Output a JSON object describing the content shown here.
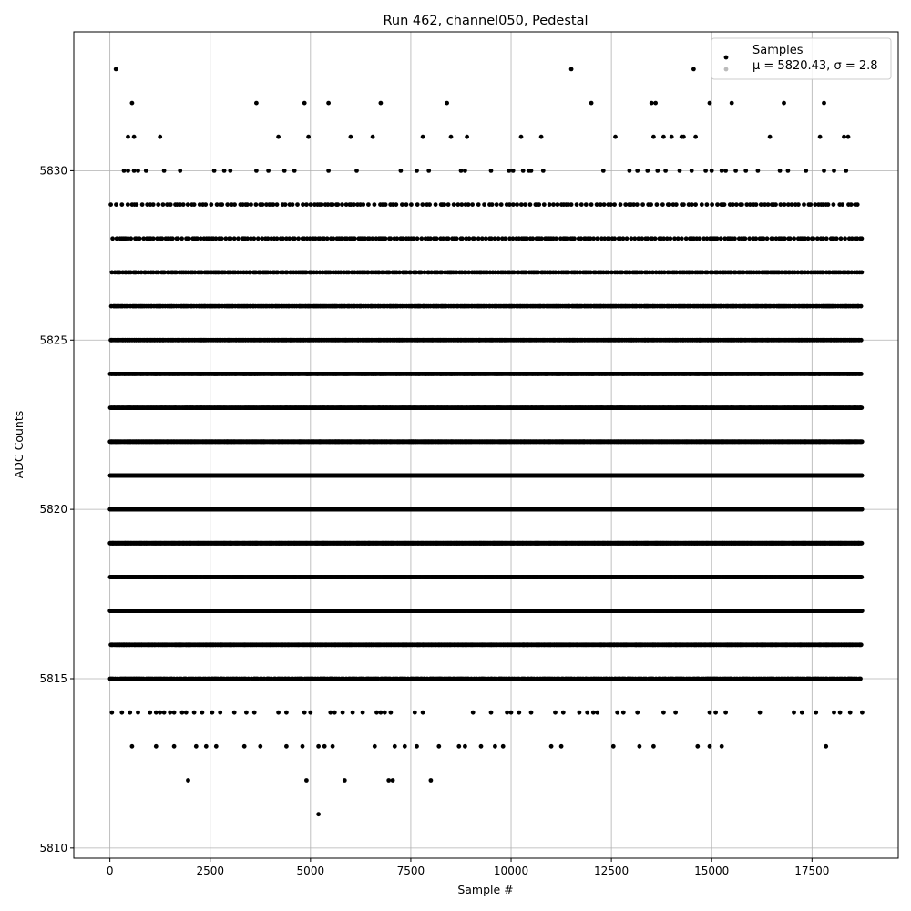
{
  "chart_data": {
    "type": "scatter",
    "title": "Run 462, channel050, Pedestal",
    "xlabel": "Sample #",
    "ylabel": "ADC Counts",
    "xlim": [
      -900,
      19650
    ],
    "ylim": [
      5809.7,
      5834.1
    ],
    "x_ticks": [
      0,
      2500,
      5000,
      7500,
      10000,
      12500,
      15000,
      17500
    ],
    "y_ticks": [
      5810,
      5815,
      5820,
      5825,
      5830
    ],
    "grid": true,
    "legend": {
      "placement": "top-right",
      "title": "Samples",
      "entry_label": "μ = 5820.43, σ = 2.8"
    },
    "n_samples": 18750,
    "series": [
      {
        "name": "Samples",
        "color": "#000000",
        "levels": [
          {
            "y": 5829,
            "x_ranges": [
              [
                0,
                18650
              ]
            ],
            "step": 95
          },
          {
            "y": 5828,
            "x_ranges": [
              [
                0,
                18750
              ]
            ],
            "step": 68
          },
          {
            "y": 5827,
            "x_ranges": [
              [
                0,
                18750
              ]
            ],
            "step": 52
          },
          {
            "y": 5826,
            "x_ranges": [
              [
                0,
                18750
              ]
            ],
            "step": 38
          },
          {
            "y": 5825,
            "x_ranges": [
              [
                0,
                18750
              ]
            ],
            "step": 28
          },
          {
            "y": 5824,
            "x_ranges": [
              [
                0,
                18750
              ]
            ],
            "step": 20
          },
          {
            "y": 5823,
            "x_ranges": [
              [
                0,
                18750
              ]
            ],
            "step": 14
          },
          {
            "y": 5822,
            "x_ranges": [
              [
                0,
                18750
              ]
            ],
            "step": 10
          },
          {
            "y": 5821,
            "x_ranges": [
              [
                0,
                18750
              ]
            ],
            "step": 8
          },
          {
            "y": 5820,
            "x_ranges": [
              [
                0,
                18750
              ]
            ],
            "step": 8
          },
          {
            "y": 5819,
            "x_ranges": [
              [
                0,
                18750
              ]
            ],
            "step": 8
          },
          {
            "y": 5818,
            "x_ranges": [
              [
                0,
                18750
              ]
            ],
            "step": 10
          },
          {
            "y": 5817,
            "x_ranges": [
              [
                0,
                18750
              ]
            ],
            "step": 13
          },
          {
            "y": 5816,
            "x_ranges": [
              [
                0,
                18750
              ]
            ],
            "step": 22
          },
          {
            "y": 5815,
            "x_ranges": [
              [
                0,
                18750
              ]
            ],
            "step": 45
          }
        ],
        "points": [
          [
            150,
            5833
          ],
          [
            11500,
            5833
          ],
          [
            14550,
            5833
          ],
          [
            550,
            5832
          ],
          [
            3650,
            5832
          ],
          [
            4850,
            5832
          ],
          [
            5450,
            5832
          ],
          [
            6750,
            5832
          ],
          [
            8400,
            5832
          ],
          [
            12000,
            5832
          ],
          [
            13500,
            5832
          ],
          [
            13600,
            5832
          ],
          [
            14950,
            5832
          ],
          [
            15500,
            5832
          ],
          [
            16800,
            5832
          ],
          [
            17800,
            5832
          ],
          [
            450,
            5831
          ],
          [
            600,
            5831
          ],
          [
            1250,
            5831
          ],
          [
            4200,
            5831
          ],
          [
            4950,
            5831
          ],
          [
            6000,
            5831
          ],
          [
            6550,
            5831
          ],
          [
            7800,
            5831
          ],
          [
            8500,
            5831
          ],
          [
            8900,
            5831
          ],
          [
            10250,
            5831
          ],
          [
            10750,
            5831
          ],
          [
            12600,
            5831
          ],
          [
            13550,
            5831
          ],
          [
            13800,
            5831
          ],
          [
            14000,
            5831
          ],
          [
            14250,
            5831
          ],
          [
            14300,
            5831
          ],
          [
            14600,
            5831
          ],
          [
            16450,
            5831
          ],
          [
            17700,
            5831
          ],
          [
            18300,
            5831
          ],
          [
            18400,
            5831
          ],
          [
            350,
            5830
          ],
          [
            450,
            5830
          ],
          [
            600,
            5830
          ],
          [
            700,
            5830
          ],
          [
            900,
            5830
          ],
          [
            1350,
            5830
          ],
          [
            1750,
            5830
          ],
          [
            2600,
            5830
          ],
          [
            2850,
            5830
          ],
          [
            3000,
            5830
          ],
          [
            3650,
            5830
          ],
          [
            3950,
            5830
          ],
          [
            4350,
            5830
          ],
          [
            4600,
            5830
          ],
          [
            5450,
            5830
          ],
          [
            6150,
            5830
          ],
          [
            7250,
            5830
          ],
          [
            7650,
            5830
          ],
          [
            7950,
            5830
          ],
          [
            8750,
            5830
          ],
          [
            8850,
            5830
          ],
          [
            9500,
            5830
          ],
          [
            9950,
            5830
          ],
          [
            10050,
            5830
          ],
          [
            10300,
            5830
          ],
          [
            10450,
            5830
          ],
          [
            10500,
            5830
          ],
          [
            10800,
            5830
          ],
          [
            12300,
            5830
          ],
          [
            12950,
            5830
          ],
          [
            13150,
            5830
          ],
          [
            13400,
            5830
          ],
          [
            13650,
            5830
          ],
          [
            13850,
            5830
          ],
          [
            14200,
            5830
          ],
          [
            14500,
            5830
          ],
          [
            14850,
            5830
          ],
          [
            15000,
            5830
          ],
          [
            15250,
            5830
          ],
          [
            15350,
            5830
          ],
          [
            15600,
            5830
          ],
          [
            15850,
            5830
          ],
          [
            16150,
            5830
          ],
          [
            16700,
            5830
          ],
          [
            16900,
            5830
          ],
          [
            17350,
            5830
          ],
          [
            17800,
            5830
          ],
          [
            18050,
            5830
          ],
          [
            18350,
            5830
          ],
          [
            50,
            5814
          ],
          [
            300,
            5814
          ],
          [
            500,
            5814
          ],
          [
            700,
            5814
          ],
          [
            1000,
            5814
          ],
          [
            1150,
            5814
          ],
          [
            1250,
            5814
          ],
          [
            1350,
            5814
          ],
          [
            1500,
            5814
          ],
          [
            1600,
            5814
          ],
          [
            1800,
            5814
          ],
          [
            1900,
            5814
          ],
          [
            2100,
            5814
          ],
          [
            2300,
            5814
          ],
          [
            2550,
            5814
          ],
          [
            2750,
            5814
          ],
          [
            3100,
            5814
          ],
          [
            3400,
            5814
          ],
          [
            3600,
            5814
          ],
          [
            4200,
            5814
          ],
          [
            4400,
            5814
          ],
          [
            4850,
            5814
          ],
          [
            5000,
            5814
          ],
          [
            5500,
            5814
          ],
          [
            5600,
            5814
          ],
          [
            5800,
            5814
          ],
          [
            6050,
            5814
          ],
          [
            6300,
            5814
          ],
          [
            6650,
            5814
          ],
          [
            6750,
            5814
          ],
          [
            6850,
            5814
          ],
          [
            7000,
            5814
          ],
          [
            7600,
            5814
          ],
          [
            7800,
            5814
          ],
          [
            9050,
            5814
          ],
          [
            9500,
            5814
          ],
          [
            9900,
            5814
          ],
          [
            10000,
            5814
          ],
          [
            10200,
            5814
          ],
          [
            10500,
            5814
          ],
          [
            11100,
            5814
          ],
          [
            11300,
            5814
          ],
          [
            11700,
            5814
          ],
          [
            11900,
            5814
          ],
          [
            12050,
            5814
          ],
          [
            12150,
            5814
          ],
          [
            12650,
            5814
          ],
          [
            12800,
            5814
          ],
          [
            13150,
            5814
          ],
          [
            13800,
            5814
          ],
          [
            14100,
            5814
          ],
          [
            14950,
            5814
          ],
          [
            15100,
            5814
          ],
          [
            15350,
            5814
          ],
          [
            16200,
            5814
          ],
          [
            17050,
            5814
          ],
          [
            17250,
            5814
          ],
          [
            17600,
            5814
          ],
          [
            18050,
            5814
          ],
          [
            18200,
            5814
          ],
          [
            18450,
            5814
          ],
          [
            18750,
            5814
          ],
          [
            550,
            5813
          ],
          [
            1150,
            5813
          ],
          [
            1600,
            5813
          ],
          [
            2150,
            5813
          ],
          [
            2400,
            5813
          ],
          [
            2650,
            5813
          ],
          [
            3350,
            5813
          ],
          [
            3750,
            5813
          ],
          [
            4400,
            5813
          ],
          [
            4800,
            5813
          ],
          [
            5200,
            5813
          ],
          [
            5350,
            5813
          ],
          [
            5550,
            5813
          ],
          [
            6600,
            5813
          ],
          [
            7100,
            5813
          ],
          [
            7350,
            5813
          ],
          [
            7650,
            5813
          ],
          [
            8200,
            5813
          ],
          [
            8700,
            5813
          ],
          [
            8850,
            5813
          ],
          [
            9250,
            5813
          ],
          [
            9600,
            5813
          ],
          [
            9800,
            5813
          ],
          [
            11000,
            5813
          ],
          [
            11250,
            5813
          ],
          [
            12550,
            5813
          ],
          [
            13200,
            5813
          ],
          [
            13550,
            5813
          ],
          [
            14650,
            5813
          ],
          [
            14950,
            5813
          ],
          [
            15250,
            5813
          ],
          [
            17850,
            5813
          ],
          [
            1950,
            5812
          ],
          [
            4900,
            5812
          ],
          [
            5850,
            5812
          ],
          [
            6950,
            5812
          ],
          [
            7050,
            5812
          ],
          [
            8000,
            5812
          ],
          [
            5200,
            5811
          ]
        ]
      }
    ]
  }
}
